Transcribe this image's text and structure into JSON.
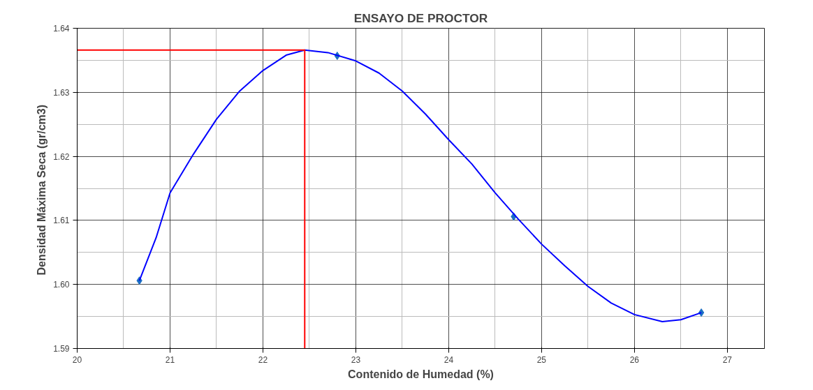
{
  "chart_data": {
    "type": "scatter",
    "title": "ENSAYO DE PROCTOR",
    "xlabel": "Contenido de Humedad (%)",
    "ylabel": "Densidad Máxima Seca  (gr/cm3)",
    "xlim": [
      20,
      27.4
    ],
    "xticks": [
      20,
      21,
      22,
      23,
      24,
      25,
      26,
      27
    ],
    "ylim": [
      1.59,
      1.64
    ],
    "yticks": [
      {
        "value": 1.59,
        "label": "1.59"
      },
      {
        "value": 1.6,
        "label": "1.60"
      },
      {
        "value": 1.61,
        "label": "1.61"
      },
      {
        "value": 1.62,
        "label": "1.62"
      },
      {
        "value": 1.63,
        "label": "1.63"
      },
      {
        "value": 1.64,
        "label": "1.64"
      }
    ],
    "grid": true,
    "marker": "diamond",
    "series": [
      {
        "color": "#1c6fc4",
        "x": [
          20.67,
          22.8,
          24.7,
          26.72
        ],
        "values": [
          1.6006,
          1.6357,
          1.6106,
          1.5956
        ]
      },
      {
        "type": "line",
        "marker": "none",
        "color": "#0000ff",
        "x": [
          20.67,
          20.85,
          21,
          21.25,
          21.5,
          21.75,
          22,
          22.25,
          22.45,
          22.7,
          23,
          23.25,
          23.5,
          23.75,
          24,
          24.25,
          24.5,
          24.75,
          25,
          25.25,
          25.5,
          25.75,
          26,
          26.3,
          26.5,
          26.72
        ],
        "values": [
          1.6006,
          1.6073,
          1.6143,
          1.6203,
          1.6258,
          1.6302,
          1.6334,
          1.6358,
          1.6366,
          1.6362,
          1.6349,
          1.633,
          1.6302,
          1.6266,
          1.6226,
          1.6188,
          1.6143,
          1.6102,
          1.6063,
          1.6029,
          1.5997,
          1.5971,
          1.5953,
          1.5942,
          1.5945,
          1.5956
        ]
      },
      {
        "type": "line",
        "marker": "none",
        "color": "#ff0000",
        "x": [
          20,
          22.45,
          22.45
        ],
        "values": [
          1.6366,
          1.6366,
          1.59
        ]
      }
    ]
  }
}
